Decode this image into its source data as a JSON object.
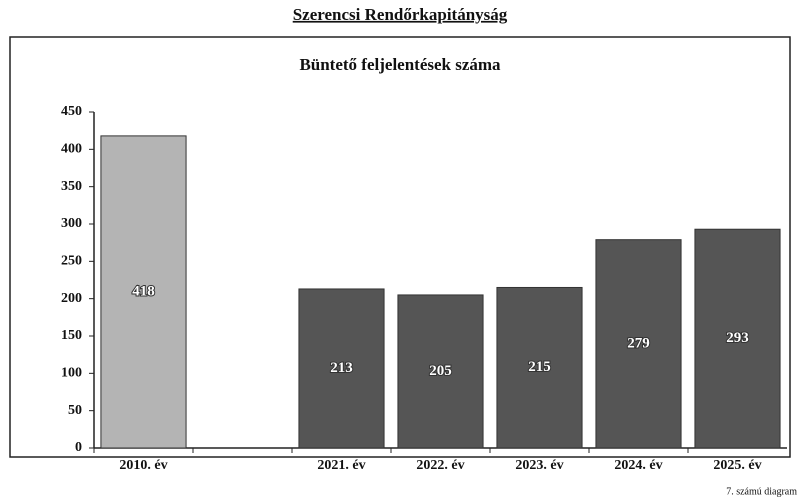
{
  "chart_data": {
    "type": "bar",
    "header": "Szerencsi Rendőrkapitányság",
    "title": "Büntető feljelentések száma",
    "footnote": "7. számú diagram",
    "categories": [
      "2010. év",
      null,
      "2021. év",
      "2022. év",
      "2023. év",
      "2024. év",
      "2025. év"
    ],
    "values": [
      418,
      null,
      213,
      205,
      215,
      279,
      293
    ],
    "colors": [
      "#b4b4b4",
      null,
      "#555555",
      "#555555",
      "#555555",
      "#555555",
      "#555555"
    ],
    "ylim": [
      0,
      450
    ],
    "yticks": [
      0,
      50,
      100,
      150,
      200,
      250,
      300,
      350,
      400,
      450
    ],
    "grid": false
  }
}
